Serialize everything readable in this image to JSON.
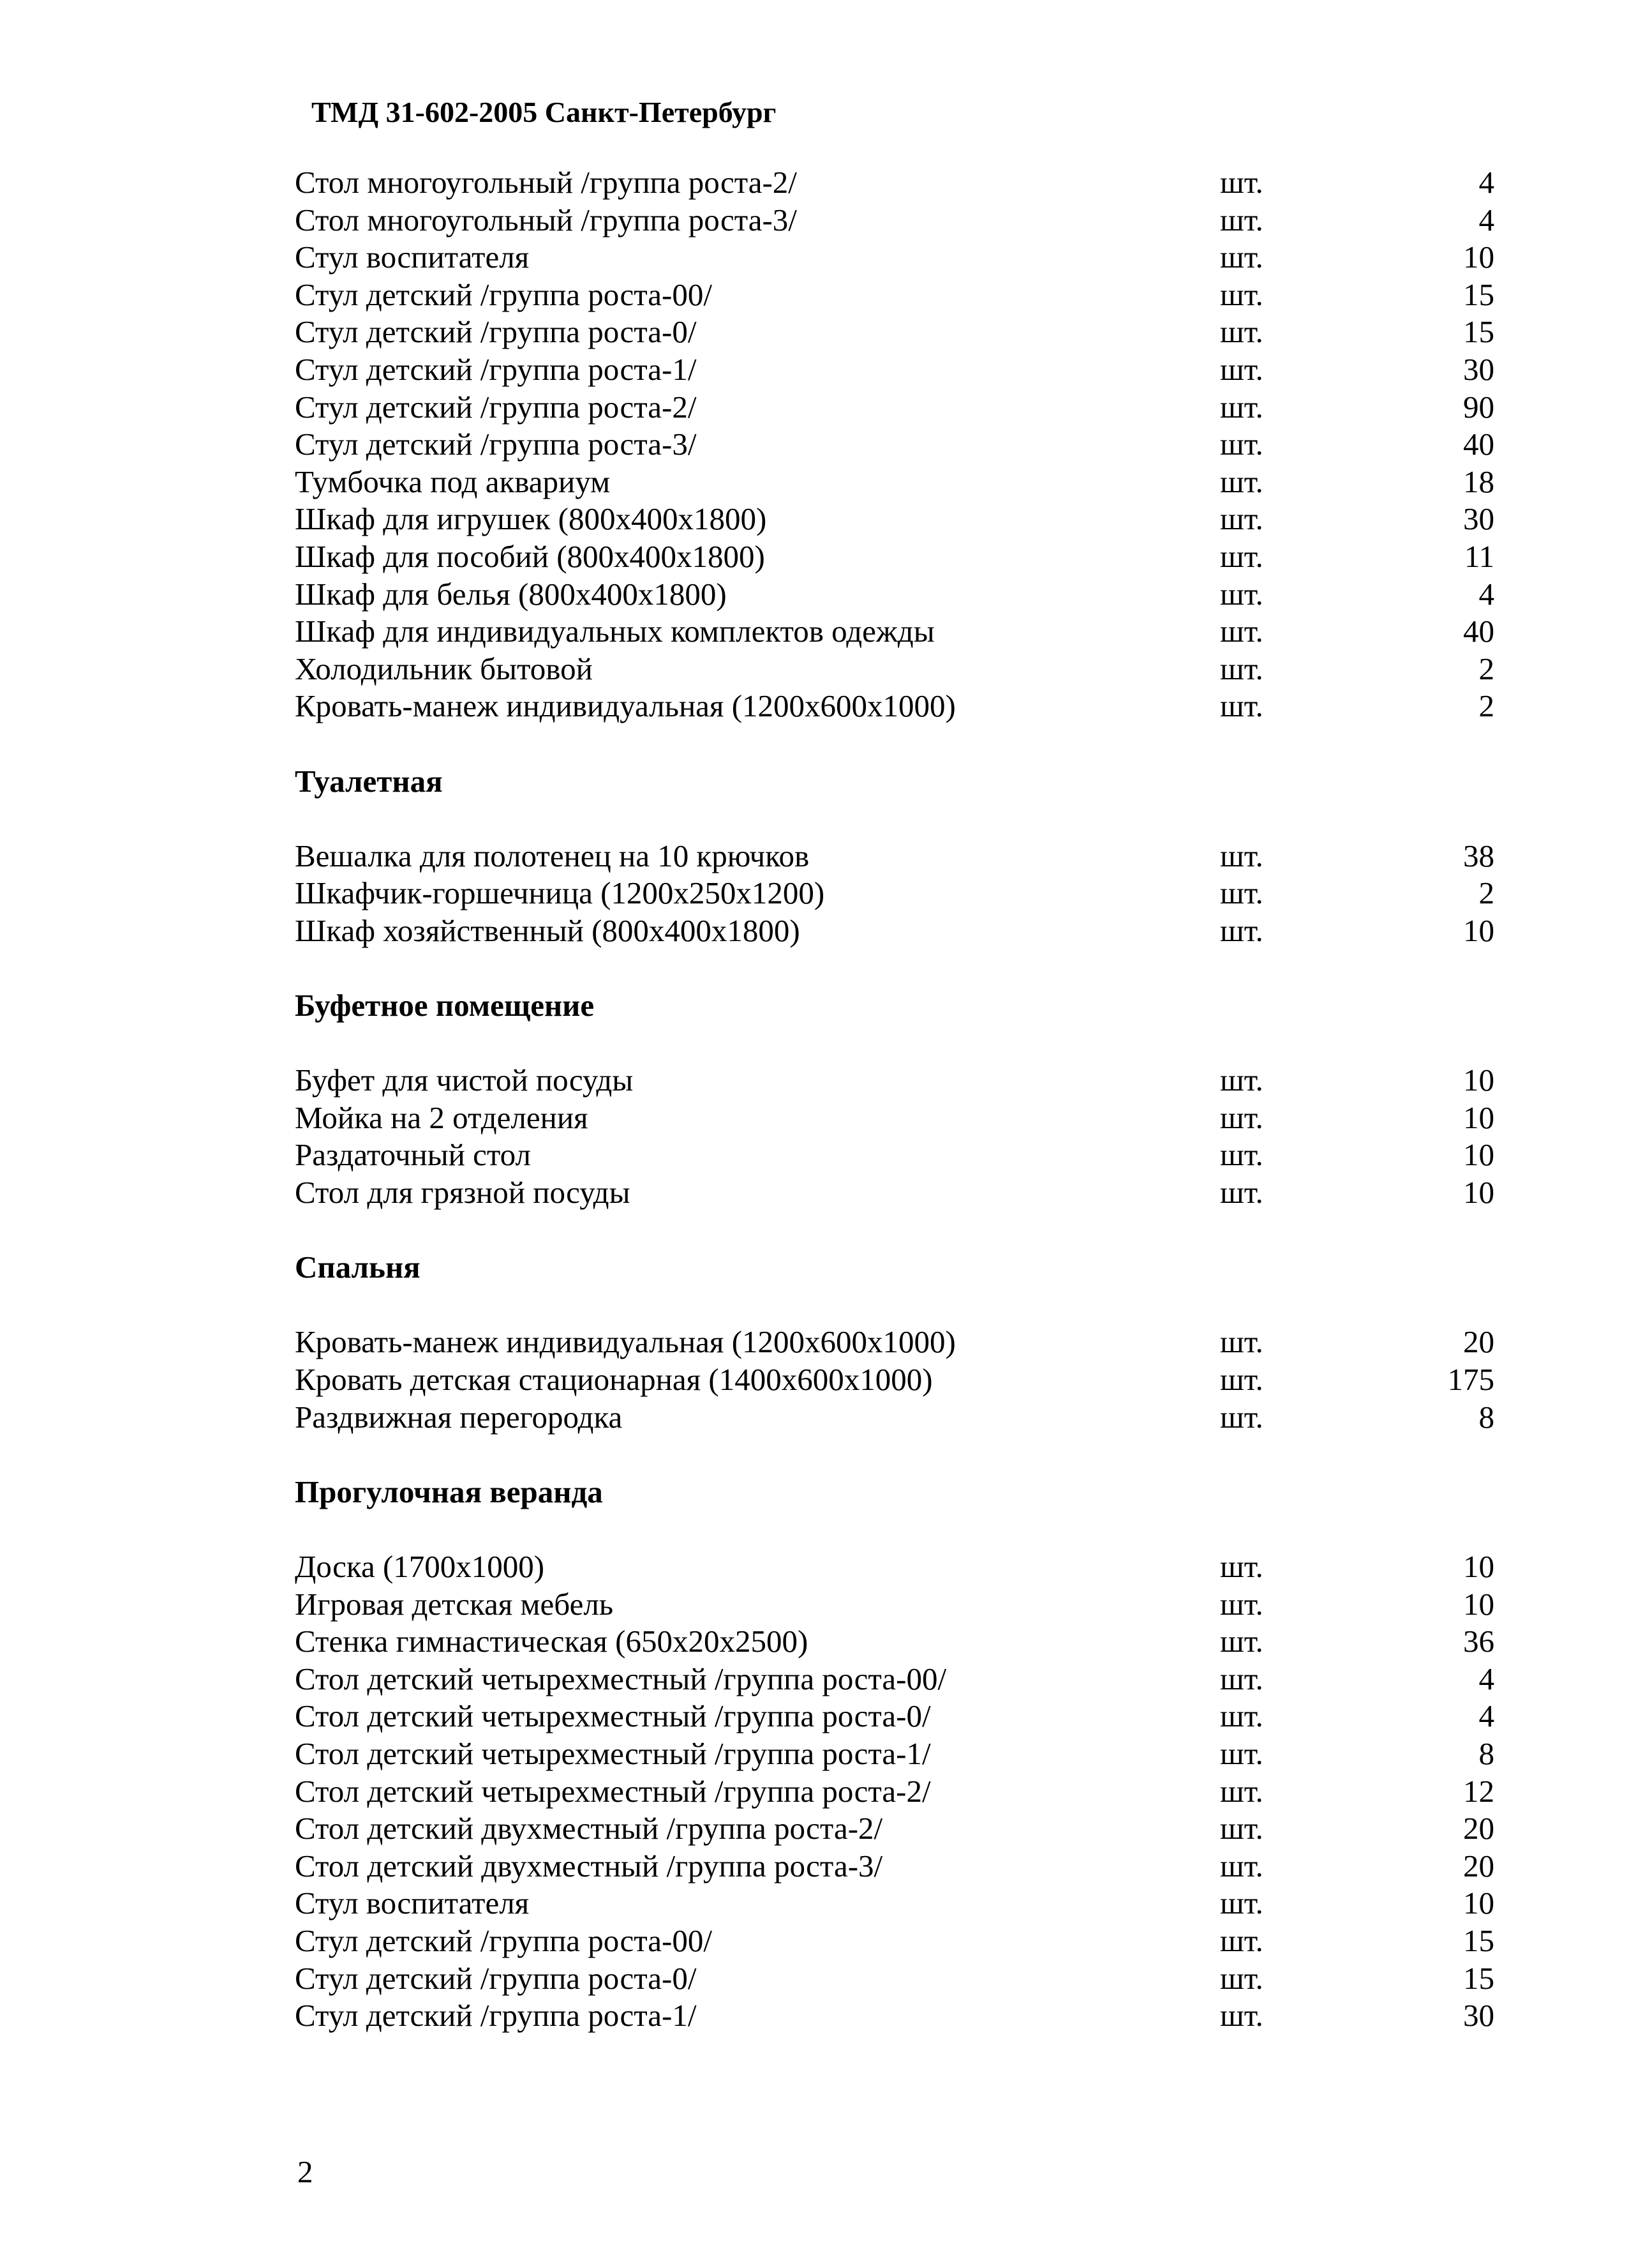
{
  "header": {
    "title": "ТМД 31-602-2005 Санкт-Петербург"
  },
  "sections": [
    {
      "heading": "",
      "items": [
        {
          "name": "Стол многоугольный /группа роста-2/",
          "unit": "шт.",
          "qty": "4"
        },
        {
          "name": "Стол многоугольный /группа роста-3/",
          "unit": "шт.",
          "qty": "4"
        },
        {
          "name": "Стул воспитателя",
          "unit": "шт.",
          "qty": "10"
        },
        {
          "name": "Стул детский /группа роста-00/",
          "unit": "шт.",
          "qty": "15"
        },
        {
          "name": "Стул детский /группа роста-0/",
          "unit": "шт.",
          "qty": "15"
        },
        {
          "name": "Стул детский /группа роста-1/",
          "unit": "шт.",
          "qty": "30"
        },
        {
          "name": "Стул детский /группа роста-2/",
          "unit": "шт.",
          "qty": "90"
        },
        {
          "name": "Стул детский /группа роста-3/",
          "unit": "шт.",
          "qty": "40"
        },
        {
          "name": "Тумбочка под аквариум",
          "unit": "шт.",
          "qty": "18"
        },
        {
          "name": "Шкаф для игрушек (800x400x1800)",
          "unit": "шт.",
          "qty": "30"
        },
        {
          "name": "Шкаф для пособий (800x400x1800)",
          "unit": "шт.",
          "qty": "11"
        },
        {
          "name": "Шкаф для белья (800x400x1800)",
          "unit": "шт.",
          "qty": "4"
        },
        {
          "name": "Шкаф для индивидуальных комплектов одежды",
          "unit": "шт.",
          "qty": "40"
        },
        {
          "name": "Холодильник бытовой",
          "unit": "шт.",
          "qty": "2"
        },
        {
          "name": "Кровать-манеж индивидуальная (1200x600x1000)",
          "unit": "шт.",
          "qty": "2"
        }
      ]
    },
    {
      "heading": "Туалетная",
      "items": [
        {
          "name": "Вешалка для полотенец на 10 крючков",
          "unit": "шт.",
          "qty": "38"
        },
        {
          "name": "Шкафчик-горшечница (1200x250x1200)",
          "unit": "шт.",
          "qty": "2"
        },
        {
          "name": "Шкаф хозяйственный (800x400x1800)",
          "unit": "шт.",
          "qty": "10"
        }
      ]
    },
    {
      "heading": "Буфетное помещение",
      "items": [
        {
          "name": "Буфет для чистой посуды",
          "unit": "шт.",
          "qty": "10"
        },
        {
          "name": "Мойка на 2 отделения",
          "unit": "шт.",
          "qty": "10"
        },
        {
          "name": "Раздаточный стол",
          "unit": "шт.",
          "qty": "10"
        },
        {
          "name": "Стол для грязной посуды",
          "unit": "шт.",
          "qty": "10"
        }
      ]
    },
    {
      "heading": "Спальня",
      "items": [
        {
          "name": "Кровать-манеж индивидуальная (1200x600x1000)",
          "unit": "шт.",
          "qty": "20"
        },
        {
          "name": "Кровать детская стационарная (1400x600x1000)",
          "unit": "шт.",
          "qty": "175"
        },
        {
          "name": "Раздвижная перегородка",
          "unit": "шт.",
          "qty": "8"
        }
      ]
    },
    {
      "heading": "Прогулочная веранда",
      "items": [
        {
          "name": "Доска (1700x1000)",
          "unit": "шт.",
          "qty": "10"
        },
        {
          "name": "Игровая детская мебель",
          "unit": "шт.",
          "qty": "10"
        },
        {
          "name": "Стенка гимнастическая (650x20x2500)",
          "unit": "шт.",
          "qty": "36"
        },
        {
          "name": "Стол детский четырехместный /группа роста-00/",
          "unit": "шт.",
          "qty": "4"
        },
        {
          "name": "Стол детский четырехместный /группа роста-0/",
          "unit": "шт.",
          "qty": "4"
        },
        {
          "name": "Стол детский четырехместный /группа роста-1/",
          "unit": "шт.",
          "qty": "8"
        },
        {
          "name": "Стол детский четырехместный /группа роста-2/",
          "unit": "шт.",
          "qty": "12"
        },
        {
          "name": "Стол детский двухместный /группа роста-2/",
          "unit": "шт.",
          "qty": "20"
        },
        {
          "name": "Стол детский двухместный /группа роста-3/",
          "unit": "шт.",
          "qty": "20"
        },
        {
          "name": "Стул воспитателя",
          "unit": "шт.",
          "qty": "10"
        },
        {
          "name": "Стул детский /группа роста-00/",
          "unit": "шт.",
          "qty": "15"
        },
        {
          "name": "Стул детский /группа роста-0/",
          "unit": "шт.",
          "qty": "15"
        },
        {
          "name": "Стул детский /группа роста-1/",
          "unit": "шт.",
          "qty": "30"
        }
      ]
    }
  ],
  "footer": {
    "page_number": "2"
  }
}
